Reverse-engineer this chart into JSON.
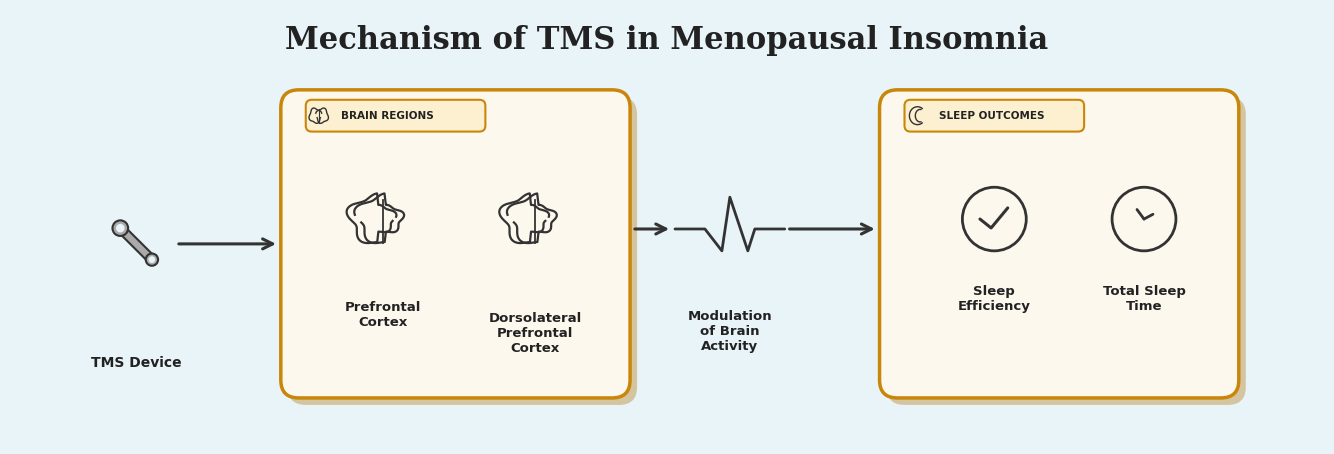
{
  "title": "Mechanism of TMS in Menopausal Insomnia",
  "title_fontsize": 22,
  "bg_color": "#e8f4f8",
  "box_fill": "#fdf8ee",
  "box_border": "#c8860a",
  "box_shadow": "#d4c4a0",
  "label_color": "#222222",
  "arrow_color": "#333333",
  "icon_color": "#333333",
  "tag_fill": "#fdf0d0",
  "tag_border": "#c8860a",
  "tms_label": "TMS Device",
  "brain_tag": "BRAIN REGIONS",
  "sleep_tag": "SLEEP OUTCOMES",
  "brain_label1": "Prefrontal\nCortex",
  "brain_label2": "Dorsolateral\nPrefrontal\nCortex",
  "modulation_label": "Modulation\nof Brain\nActivity",
  "sleep_label1": "Sleep\nEfficiency",
  "sleep_label2": "Total Sleep\nTime"
}
